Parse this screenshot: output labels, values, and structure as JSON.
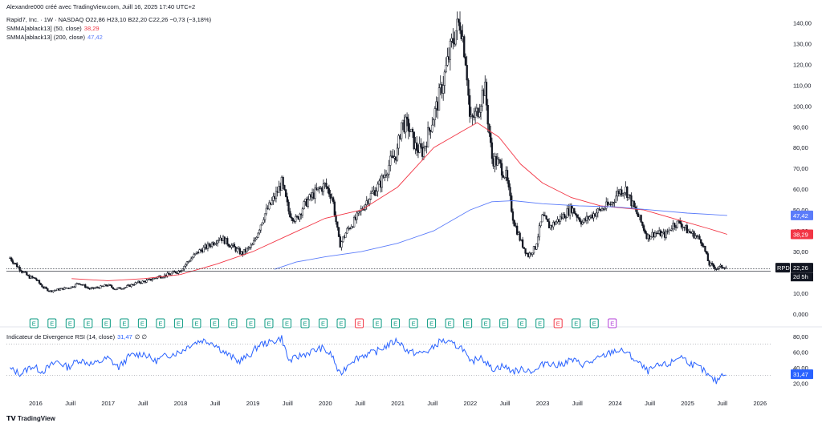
{
  "header": {
    "attribution": "Alexandre000 créé avec TradingView.com, Juill 16, 2025 17:40 UTC+2",
    "symbol_line": "Rapid7, Inc. · 1W · NASDAQ  O22,86  H23,10  B22,20  C22,26  −0,73 (−3,18%)",
    "sma50_label": "SMMA[ablack13] (50, close)",
    "sma50_value": "38,29",
    "sma200_label": "SMMA[ablack13] (200, close)",
    "sma200_value": "47,42",
    "rsi_label": "Indicateur de Divergence RSI (14, close)",
    "rsi_value": "31,47",
    "rsi_extra": "∅  ∅"
  },
  "brand": "TradingView",
  "colors": {
    "up": "#131722",
    "down": "#131722",
    "sma50": "#f23645",
    "sma200": "#5b7cfa",
    "rsi": "#2962ff",
    "earnings": "#089981",
    "earnings_red": "#f23645",
    "earnings_purple": "#b33fd8",
    "grid": "#e0e3eb"
  },
  "chart_data": {
    "type": "candlestick",
    "price_axis_ticks": [
      "140,00",
      "130,00",
      "120,00",
      "110,00",
      "100,00",
      "90,00",
      "80,00",
      "70,00",
      "60,00",
      "50,00",
      "40,00",
      "30,00",
      "20,00",
      "10,00",
      "0,000"
    ],
    "price_axis_range": [
      0,
      144
    ],
    "x_axis_ticks": [
      "2016",
      "Juill",
      "2017",
      "Juill",
      "2018",
      "Juill",
      "2019",
      "Juill",
      "2020",
      "Juill",
      "2021",
      "Juill",
      "2022",
      "Juill",
      "2023",
      "Juill",
      "2024",
      "Juill",
      "2025",
      "Juill",
      "2026"
    ],
    "price_labels": [
      {
        "text": "47,42",
        "value": 47.42,
        "color": "#5b7cfa"
      },
      {
        "text": "38,29",
        "value": 38.29,
        "color": "#f23645"
      },
      {
        "text": "22,26",
        "value": 22.26,
        "color": "#131722"
      }
    ],
    "symbol_tag": "RPD",
    "countdown": "2d 5h",
    "close_line_value": 21.2,
    "price_path": [
      [
        2015.65,
        27
      ],
      [
        2015.75,
        23
      ],
      [
        2015.9,
        18
      ],
      [
        2016.0,
        17
      ],
      [
        2016.1,
        13
      ],
      [
        2016.2,
        11
      ],
      [
        2016.35,
        12
      ],
      [
        2016.5,
        13
      ],
      [
        2016.6,
        15
      ],
      [
        2016.75,
        12
      ],
      [
        2016.9,
        13
      ],
      [
        2017.0,
        14
      ],
      [
        2017.1,
        12
      ],
      [
        2017.25,
        13
      ],
      [
        2017.4,
        15
      ],
      [
        2017.55,
        16
      ],
      [
        2017.7,
        18
      ],
      [
        2017.85,
        19
      ],
      [
        2018.0,
        21
      ],
      [
        2018.1,
        25
      ],
      [
        2018.25,
        30
      ],
      [
        2018.4,
        33
      ],
      [
        2018.55,
        37
      ],
      [
        2018.7,
        33
      ],
      [
        2018.85,
        29
      ],
      [
        2019.0,
        33
      ],
      [
        2019.15,
        47
      ],
      [
        2019.3,
        56
      ],
      [
        2019.4,
        63
      ],
      [
        2019.5,
        49
      ],
      [
        2019.6,
        45
      ],
      [
        2019.7,
        52
      ],
      [
        2019.85,
        58
      ],
      [
        2020.0,
        62
      ],
      [
        2020.1,
        56
      ],
      [
        2020.2,
        33
      ],
      [
        2020.3,
        40
      ],
      [
        2020.45,
        47
      ],
      [
        2020.6,
        56
      ],
      [
        2020.75,
        62
      ],
      [
        2020.9,
        73
      ],
      [
        2021.0,
        78
      ],
      [
        2021.05,
        92
      ],
      [
        2021.15,
        90
      ],
      [
        2021.25,
        80
      ],
      [
        2021.35,
        78
      ],
      [
        2021.45,
        90
      ],
      [
        2021.55,
        101
      ],
      [
        2021.65,
        115
      ],
      [
        2021.75,
        130
      ],
      [
        2021.8,
        136
      ],
      [
        2021.87,
        141
      ],
      [
        2021.95,
        120
      ],
      [
        2022.0,
        92
      ],
      [
        2022.1,
        97
      ],
      [
        2022.2,
        110
      ],
      [
        2022.3,
        75
      ],
      [
        2022.4,
        72
      ],
      [
        2022.5,
        66
      ],
      [
        2022.6,
        45
      ],
      [
        2022.7,
        35
      ],
      [
        2022.8,
        28
      ],
      [
        2022.9,
        32
      ],
      [
        2023.0,
        47
      ],
      [
        2023.1,
        42
      ],
      [
        2023.25,
        46
      ],
      [
        2023.4,
        51
      ],
      [
        2023.55,
        44
      ],
      [
        2023.7,
        48
      ],
      [
        2023.8,
        50
      ],
      [
        2023.95,
        53
      ],
      [
        2024.05,
        59
      ],
      [
        2024.15,
        60
      ],
      [
        2024.25,
        52
      ],
      [
        2024.35,
        45
      ],
      [
        2024.45,
        37
      ],
      [
        2024.55,
        39
      ],
      [
        2024.7,
        38
      ],
      [
        2024.8,
        43
      ],
      [
        2024.9,
        44
      ],
      [
        2025.0,
        40
      ],
      [
        2025.1,
        38
      ],
      [
        2025.2,
        35
      ],
      [
        2025.3,
        24
      ],
      [
        2025.4,
        22
      ],
      [
        2025.5,
        23
      ],
      [
        2025.55,
        22.3
      ]
    ],
    "sma50_path": [
      [
        2016.5,
        17
      ],
      [
        2017.0,
        16
      ],
      [
        2017.5,
        17
      ],
      [
        2018.0,
        19
      ],
      [
        2018.5,
        24
      ],
      [
        2019.0,
        30
      ],
      [
        2019.5,
        38
      ],
      [
        2020.0,
        46
      ],
      [
        2020.5,
        50
      ],
      [
        2021.0,
        61
      ],
      [
        2021.5,
        80
      ],
      [
        2021.9,
        88
      ],
      [
        2022.1,
        92
      ],
      [
        2022.4,
        85
      ],
      [
        2022.7,
        72
      ],
      [
        2023.0,
        63
      ],
      [
        2023.4,
        56
      ],
      [
        2023.8,
        52
      ],
      [
        2024.1,
        51
      ],
      [
        2024.4,
        50
      ],
      [
        2024.7,
        47
      ],
      [
        2025.0,
        44
      ],
      [
        2025.3,
        41
      ],
      [
        2025.55,
        38.3
      ]
    ],
    "sma200_path": [
      [
        2019.3,
        21.5
      ],
      [
        2019.6,
        25
      ],
      [
        2020.0,
        27.5
      ],
      [
        2020.5,
        30
      ],
      [
        2021.0,
        34
      ],
      [
        2021.5,
        40
      ],
      [
        2022.0,
        50
      ],
      [
        2022.3,
        54
      ],
      [
        2022.6,
        54.5
      ],
      [
        2023.0,
        53
      ],
      [
        2023.5,
        52
      ],
      [
        2024.0,
        51.5
      ],
      [
        2024.5,
        50
      ],
      [
        2025.0,
        48.5
      ],
      [
        2025.55,
        47.4
      ]
    ],
    "earnings_markers": [
      "E",
      "E",
      "E",
      "E",
      "E",
      "E",
      "E",
      "E",
      "E",
      "E",
      "E",
      "E",
      "E",
      "E",
      "E",
      "E",
      "E",
      "E",
      "E",
      "E",
      "E",
      "E",
      "E",
      "E",
      "E",
      "E",
      "E",
      "E",
      "E",
      "E",
      "E",
      "E",
      "E"
    ],
    "earnings_colors": [
      "g",
      "g",
      "g",
      "g",
      "g",
      "g",
      "g",
      "g",
      "g",
      "g",
      "g",
      "g",
      "g",
      "g",
      "g",
      "g",
      "g",
      "g",
      "r",
      "g",
      "g",
      "g",
      "g",
      "g",
      "g",
      "g",
      "g",
      "g",
      "g",
      "r",
      "g",
      "g",
      "p"
    ],
    "rsi_axis_ticks": [
      "80,00",
      "60,00",
      "40,00",
      "20,00"
    ],
    "rsi_range": [
      10,
      88
    ],
    "rsi_level_lines": [
      70,
      30
    ],
    "rsi_path": [
      [
        2015.65,
        38
      ],
      [
        2015.8,
        32
      ],
      [
        2015.95,
        42
      ],
      [
        2016.1,
        35
      ],
      [
        2016.3,
        48
      ],
      [
        2016.45,
        40
      ],
      [
        2016.6,
        50
      ],
      [
        2016.8,
        44
      ],
      [
        2017.0,
        52
      ],
      [
        2017.15,
        40
      ],
      [
        2017.3,
        55
      ],
      [
        2017.5,
        58
      ],
      [
        2017.65,
        48
      ],
      [
        2017.8,
        55
      ],
      [
        2018.0,
        60
      ],
      [
        2018.15,
        70
      ],
      [
        2018.3,
        75
      ],
      [
        2018.45,
        72
      ],
      [
        2018.6,
        60
      ],
      [
        2018.8,
        48
      ],
      [
        2018.95,
        55
      ],
      [
        2019.1,
        70
      ],
      [
        2019.25,
        72
      ],
      [
        2019.4,
        78
      ],
      [
        2019.5,
        48
      ],
      [
        2019.65,
        55
      ],
      [
        2019.8,
        60
      ],
      [
        2019.95,
        65
      ],
      [
        2020.1,
        55
      ],
      [
        2020.2,
        30
      ],
      [
        2020.35,
        48
      ],
      [
        2020.5,
        55
      ],
      [
        2020.7,
        60
      ],
      [
        2020.85,
        68
      ],
      [
        2021.0,
        75
      ],
      [
        2021.15,
        60
      ],
      [
        2021.3,
        58
      ],
      [
        2021.45,
        62
      ],
      [
        2021.6,
        75
      ],
      [
        2021.75,
        70
      ],
      [
        2021.9,
        65
      ],
      [
        2022.0,
        45
      ],
      [
        2022.15,
        55
      ],
      [
        2022.3,
        38
      ],
      [
        2022.45,
        42
      ],
      [
        2022.6,
        35
      ],
      [
        2022.75,
        38
      ],
      [
        2022.9,
        35
      ],
      [
        2023.05,
        48
      ],
      [
        2023.2,
        42
      ],
      [
        2023.4,
        50
      ],
      [
        2023.55,
        44
      ],
      [
        2023.7,
        48
      ],
      [
        2023.85,
        55
      ],
      [
        2024.0,
        62
      ],
      [
        2024.15,
        60
      ],
      [
        2024.3,
        48
      ],
      [
        2024.45,
        35
      ],
      [
        2024.6,
        42
      ],
      [
        2024.75,
        44
      ],
      [
        2024.9,
        55
      ],
      [
        2025.05,
        45
      ],
      [
        2025.2,
        38
      ],
      [
        2025.3,
        28
      ],
      [
        2025.4,
        22
      ],
      [
        2025.5,
        34
      ],
      [
        2025.55,
        31.5
      ]
    ]
  }
}
